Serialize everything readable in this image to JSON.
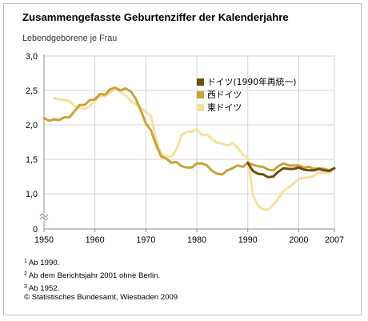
{
  "chart_data": {
    "type": "line",
    "title": "Zusammengefasste Geburtenziffer der Kalenderjahre",
    "ylabel": "Lebendgeborene je Frau",
    "xlabel": "",
    "xlim": [
      1950,
      2007
    ],
    "ylim": [
      0,
      3.0
    ],
    "x_ticks": [
      1950,
      1960,
      1970,
      1980,
      1990,
      2000,
      2007
    ],
    "x_tick_labels": [
      "1950",
      "1960",
      "1970",
      "1980",
      "1990",
      "2000",
      "2007"
    ],
    "y_ticks": [
      0,
      1.0,
      1.5,
      2.0,
      2.5,
      3.0
    ],
    "y_tick_labels": [
      "0",
      "1,0",
      "1,5",
      "2,0",
      "2,5",
      "3,0"
    ],
    "y_axis_break": true,
    "grid": true,
    "legend_position": "top-right",
    "series": [
      {
        "name": "東ドイツ",
        "color": "#f5e0a0",
        "x": [
          1952,
          1953,
          1954,
          1955,
          1956,
          1957,
          1958,
          1959,
          1960,
          1961,
          1962,
          1963,
          1964,
          1965,
          1966,
          1967,
          1968,
          1969,
          1970,
          1971,
          1972,
          1973,
          1974,
          1975,
          1976,
          1977,
          1978,
          1979,
          1980,
          1981,
          1982,
          1983,
          1984,
          1985,
          1986,
          1987,
          1988,
          1989,
          1990,
          1991,
          1992,
          1993,
          1994,
          1995,
          1996,
          1997,
          1998,
          1999,
          2000,
          2001,
          2002,
          2003,
          2004,
          2005,
          2006,
          2007
        ],
        "values": [
          2.39,
          2.37,
          2.36,
          2.35,
          2.27,
          2.25,
          2.23,
          2.27,
          2.35,
          2.42,
          2.42,
          2.47,
          2.52,
          2.48,
          2.43,
          2.35,
          2.3,
          2.24,
          2.19,
          2.13,
          1.79,
          1.58,
          1.54,
          1.54,
          1.64,
          1.85,
          1.9,
          1.9,
          1.94,
          1.85,
          1.86,
          1.79,
          1.74,
          1.73,
          1.7,
          1.74,
          1.67,
          1.57,
          1.52,
          0.98,
          0.83,
          0.77,
          0.77,
          0.84,
          0.93,
          1.04,
          1.09,
          1.15,
          1.21,
          1.23,
          1.24,
          1.26,
          1.31,
          1.3,
          1.3,
          1.37
        ]
      },
      {
        "name": "西ドイツ",
        "color": "#c9a23a",
        "x": [
          1950,
          1951,
          1952,
          1953,
          1954,
          1955,
          1956,
          1957,
          1958,
          1959,
          1960,
          1961,
          1962,
          1963,
          1964,
          1965,
          1966,
          1967,
          1968,
          1969,
          1970,
          1971,
          1972,
          1973,
          1974,
          1975,
          1976,
          1977,
          1978,
          1979,
          1980,
          1981,
          1982,
          1983,
          1984,
          1985,
          1986,
          1987,
          1988,
          1989,
          1990,
          1991,
          1992,
          1993,
          1994,
          1995,
          1996,
          1997,
          1998,
          1999,
          2000,
          2001,
          2002,
          2003,
          2004,
          2005,
          2006,
          2007
        ],
        "values": [
          2.1,
          2.06,
          2.08,
          2.07,
          2.11,
          2.11,
          2.2,
          2.29,
          2.29,
          2.36,
          2.37,
          2.45,
          2.44,
          2.52,
          2.54,
          2.5,
          2.53,
          2.49,
          2.38,
          2.21,
          2.02,
          1.92,
          1.71,
          1.54,
          1.51,
          1.45,
          1.46,
          1.4,
          1.38,
          1.38,
          1.44,
          1.44,
          1.41,
          1.33,
          1.29,
          1.28,
          1.34,
          1.37,
          1.41,
          1.39,
          1.45,
          1.42,
          1.4,
          1.39,
          1.35,
          1.34,
          1.4,
          1.44,
          1.41,
          1.41,
          1.41,
          1.38,
          1.39,
          1.36,
          1.37,
          1.36,
          1.34,
          1.37
        ]
      },
      {
        "name": "ドイツ(1990年再統一)",
        "color": "#6d4f12",
        "x": [
          1990,
          1991,
          1992,
          1993,
          1994,
          1995,
          1996,
          1997,
          1998,
          1999,
          2000,
          2001,
          2002,
          2003,
          2004,
          2005,
          2006,
          2007
        ],
        "values": [
          1.45,
          1.33,
          1.29,
          1.28,
          1.24,
          1.25,
          1.32,
          1.37,
          1.36,
          1.36,
          1.38,
          1.35,
          1.34,
          1.34,
          1.36,
          1.34,
          1.33,
          1.37
        ]
      }
    ],
    "legend_order": [
      2,
      1,
      0
    ]
  },
  "notes": [
    {
      "marker": "1",
      "text": "Ab 1990."
    },
    {
      "marker": "2",
      "text": "Ab dem Berichtsjahr 2001 ohne Berlin."
    },
    {
      "marker": "3",
      "text": "Ab 1952."
    }
  ],
  "source": "© Statistisches Bundesamt, Wiesbaden 2009"
}
